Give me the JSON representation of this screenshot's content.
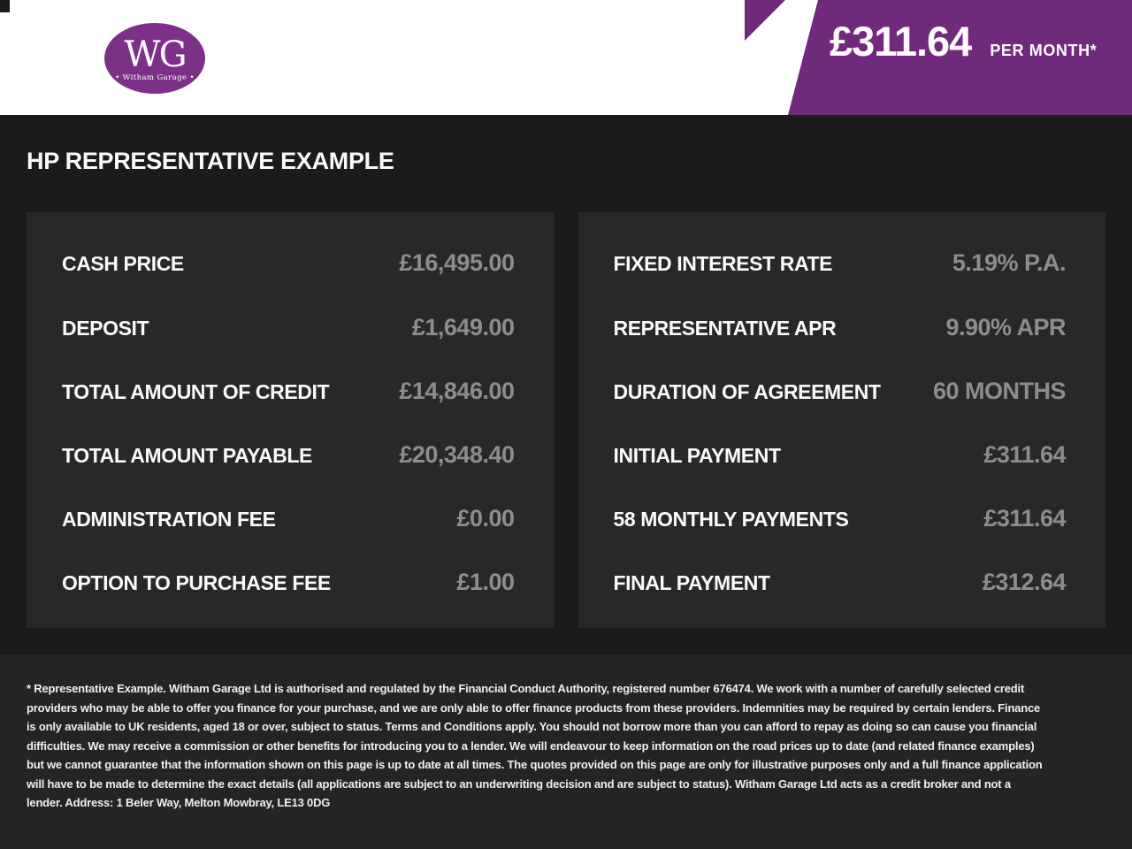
{
  "header": {
    "logo": {
      "monogram": "WG",
      "name": "• Witham Garage •"
    },
    "price_banner": {
      "amount": "£311.64",
      "suffix": "PER MONTH*"
    }
  },
  "page_title": "HP REPRESENTATIVE EXAMPLE",
  "tables": {
    "left": {
      "rows": [
        {
          "label": "CASH PRICE",
          "value": "£16,495.00"
        },
        {
          "label": "DEPOSIT",
          "value": "£1,649.00"
        },
        {
          "label": "TOTAL AMOUNT OF CREDIT",
          "value": "£14,846.00"
        },
        {
          "label": "TOTAL AMOUNT PAYABLE",
          "value": "£20,348.40"
        },
        {
          "label": "ADMINISTRATION FEE",
          "value": "£0.00"
        },
        {
          "label": "OPTION TO PURCHASE FEE",
          "value": "£1.00"
        }
      ]
    },
    "right": {
      "rows": [
        {
          "label": "FIXED INTEREST RATE",
          "value": "5.19% P.A."
        },
        {
          "label": "REPRESENTATIVE APR",
          "value": "9.90% APR"
        },
        {
          "label": "DURATION OF AGREEMENT",
          "value": "60 MONTHS"
        },
        {
          "label": "INITIAL PAYMENT",
          "value": "£311.64"
        },
        {
          "label": "58 MONTHLY PAYMENTS",
          "value": "£311.64"
        },
        {
          "label": "FINAL PAYMENT",
          "value": "£312.64"
        }
      ]
    }
  },
  "footer": {
    "disclaimer": "* Representative Example. Witham Garage Ltd is authorised and regulated by the Financial Conduct Authority, registered number 676474. We work with a number of carefully selected credit providers who may be able to offer you finance for your purchase, and we are only able to offer finance products from these providers. Indemnities may be required by certain lenders. Finance is only available to UK residents, aged 18 or over, subject to status. Terms and Conditions apply. You should not borrow more than you can afford to repay as doing so can cause you financial difficulties. We may receive a commission or other benefits for introducing you to a lender. We will endeavour to keep information on the road prices up to date (and related finance examples) but we cannot guarantee that the information shown on this page is up to date at all times. The quotes provided on this page are only for illustrative purposes only and a full finance application will have to be made to determine the exact details (all applications are subject to an underwriting decision and are subject to status). Witham Garage Ltd acts as a credit broker and not a lender. Address: 1 Beler Way, Melton Mowbray, LE13 0DG"
  },
  "colors": {
    "accent_purple": "#6f2a7c",
    "logo_purple": "#7c3087",
    "page_background": "#1b1b1d",
    "panel_background": "#28282a",
    "footer_background": "#242427",
    "value_grey": "#8d8d8d"
  }
}
